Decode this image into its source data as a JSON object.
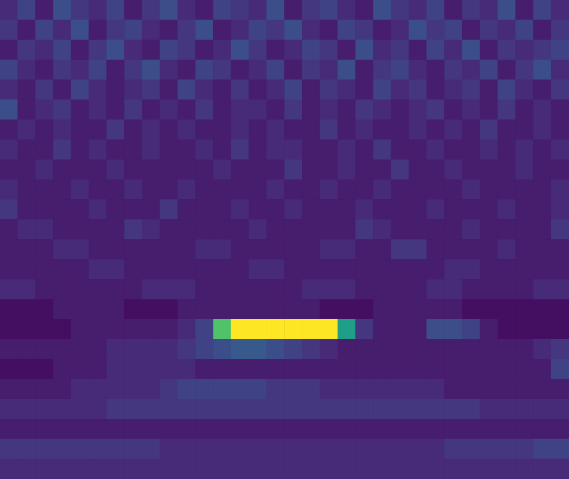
{
  "chart_data": {
    "type": "heatmap",
    "tick_labels": false,
    "value_range": [
      0,
      25
    ],
    "cells": [
      [
        3,
        5,
        2,
        6,
        4,
        3,
        5,
        2,
        4,
        6,
        3,
        2,
        5,
        4,
        3,
        6,
        2,
        4,
        5,
        3,
        2,
        6,
        4,
        3,
        5,
        2,
        4,
        3,
        6,
        2,
        5,
        3
      ],
      [
        4,
        2,
        5,
        3,
        6,
        2,
        4,
        5,
        3,
        2,
        4,
        6,
        2,
        3,
        5,
        4,
        6,
        3,
        2,
        5,
        4,
        2,
        3,
        6,
        4,
        5,
        2,
        4,
        3,
        5,
        2,
        4
      ],
      [
        2,
        4,
        3,
        5,
        2,
        4,
        6,
        3,
        2,
        5,
        4,
        2,
        3,
        6,
        4,
        2,
        3,
        5,
        4,
        2,
        6,
        3,
        4,
        2,
        5,
        3,
        6,
        2,
        4,
        3,
        4,
        5
      ],
      [
        5,
        3,
        2,
        4,
        3,
        5,
        2,
        4,
        6,
        3,
        2,
        5,
        4,
        2,
        3,
        5,
        2,
        4,
        3,
        6,
        2,
        4,
        5,
        3,
        2,
        4,
        3,
        5,
        2,
        4,
        6,
        3
      ],
      [
        3,
        2,
        4,
        2,
        5,
        3,
        2,
        3,
        4,
        2,
        5,
        3,
        2,
        4,
        2,
        3,
        5,
        2,
        4,
        3,
        2,
        5,
        3,
        4,
        2,
        3,
        4,
        2,
        5,
        3,
        2,
        4
      ],
      [
        6,
        2,
        3,
        4,
        2,
        3,
        2,
        4,
        2,
        3,
        2,
        4,
        2,
        3,
        3,
        2,
        4,
        2,
        3,
        2,
        4,
        3,
        2,
        3,
        4,
        2,
        3,
        2,
        4,
        2,
        3,
        2
      ],
      [
        2,
        3,
        2,
        3,
        2,
        2,
        4,
        2,
        3,
        2,
        3,
        2,
        2,
        3,
        2,
        3,
        2,
        2,
        4,
        2,
        3,
        2,
        2,
        3,
        2,
        3,
        2,
        4,
        2,
        2,
        3,
        2
      ],
      [
        3,
        2,
        2,
        4,
        2,
        3,
        2,
        2,
        3,
        2,
        2,
        3,
        2,
        4,
        2,
        3,
        3,
        2,
        2,
        3,
        2,
        4,
        2,
        2,
        3,
        2,
        2,
        3,
        2,
        3,
        2,
        3
      ],
      [
        2,
        2,
        3,
        2,
        2,
        2,
        3,
        2,
        2,
        2,
        2,
        2,
        3,
        2,
        2,
        2,
        4,
        2,
        2,
        3,
        2,
        2,
        4,
        2,
        2,
        3,
        2,
        2,
        2,
        3,
        2,
        2
      ],
      [
        3,
        2,
        2,
        2,
        3,
        2,
        2,
        3,
        2,
        2,
        3,
        2,
        2,
        2,
        2,
        3,
        2,
        2,
        3,
        2,
        2,
        3,
        2,
        2,
        2,
        2,
        3,
        2,
        2,
        2,
        2,
        3
      ],
      [
        4,
        2,
        2,
        2,
        2,
        3,
        2,
        2,
        2,
        4,
        2,
        2,
        2,
        3,
        2,
        2,
        3,
        2,
        2,
        2,
        3,
        2,
        2,
        2,
        3,
        2,
        2,
        2,
        3,
        2,
        2,
        3
      ],
      [
        2,
        3,
        3,
        2,
        2,
        2,
        2,
        4,
        3,
        2,
        2,
        2,
        2,
        2,
        3,
        2,
        2,
        2,
        2,
        2,
        4,
        3,
        2,
        2,
        2,
        2,
        3,
        2,
        2,
        2,
        2,
        4
      ],
      [
        2,
        2,
        2,
        3,
        3,
        2,
        2,
        2,
        2,
        2,
        2,
        3,
        3,
        2,
        2,
        2,
        2,
        2,
        3,
        3,
        2,
        2,
        4,
        4,
        2,
        2,
        2,
        2,
        3,
        2,
        2,
        2
      ],
      [
        2,
        2,
        2,
        2,
        2,
        3,
        3,
        2,
        2,
        2,
        2,
        2,
        2,
        2,
        3,
        3,
        2,
        2,
        2,
        2,
        2,
        2,
        2,
        2,
        2,
        3,
        3,
        2,
        2,
        2,
        2,
        2
      ],
      [
        3,
        3,
        2,
        2,
        2,
        2,
        2,
        2,
        3,
        3,
        3,
        2,
        2,
        2,
        2,
        2,
        2,
        3,
        3,
        3,
        2,
        2,
        2,
        2,
        3,
        3,
        2,
        2,
        2,
        2,
        3,
        3
      ],
      [
        1,
        1,
        1,
        2,
        2,
        2,
        2,
        1,
        1,
        1,
        2,
        2,
        2,
        2,
        2,
        2,
        2,
        2,
        1,
        1,
        1,
        2,
        2,
        2,
        2,
        2,
        1,
        1,
        1,
        1,
        1,
        1
      ],
      [
        1,
        1,
        1,
        1,
        2,
        2,
        2,
        2,
        2,
        2,
        3,
        5,
        18,
        25,
        25,
        25,
        25,
        25,
        25,
        14,
        4,
        2,
        2,
        2,
        6,
        6,
        5,
        2,
        1,
        1,
        1,
        1
      ],
      [
        2,
        2,
        2,
        2,
        2,
        2,
        3,
        3,
        3,
        3,
        4,
        5,
        6,
        7,
        7,
        6,
        5,
        4,
        3,
        2,
        2,
        2,
        2,
        2,
        2,
        2,
        2,
        2,
        2,
        2,
        3,
        4
      ],
      [
        1,
        1,
        1,
        2,
        2,
        2,
        3,
        3,
        3,
        3,
        3,
        2,
        2,
        2,
        2,
        2,
        2,
        2,
        2,
        2,
        2,
        2,
        2,
        2,
        2,
        2,
        2,
        2,
        2,
        2,
        2,
        5
      ],
      [
        2,
        2,
        2,
        2,
        3,
        3,
        3,
        3,
        3,
        4,
        5,
        5,
        5,
        5,
        5,
        4,
        4,
        4,
        3,
        3,
        3,
        3,
        3,
        3,
        3,
        2,
        2,
        2,
        2,
        2,
        2,
        2
      ],
      [
        3,
        3,
        3,
        3,
        3,
        3,
        4,
        4,
        4,
        4,
        4,
        4,
        4,
        4,
        4,
        4,
        4,
        4,
        4,
        4,
        4,
        4,
        4,
        4,
        4,
        4,
        4,
        3,
        3,
        3,
        3,
        3
      ],
      [
        2,
        2,
        2,
        2,
        2,
        2,
        2,
        2,
        2,
        2,
        2,
        2,
        2,
        2,
        2,
        2,
        2,
        2,
        2,
        2,
        2,
        2,
        2,
        2,
        2,
        2,
        2,
        2,
        2,
        2,
        2,
        2
      ],
      [
        4,
        4,
        4,
        4,
        4,
        4,
        4,
        4,
        4,
        3,
        3,
        3,
        3,
        3,
        3,
        3,
        3,
        3,
        3,
        3,
        3,
        3,
        3,
        3,
        3,
        4,
        4,
        4,
        4,
        4,
        5,
        5
      ],
      [
        3,
        3,
        3,
        3,
        3,
        3,
        3,
        3,
        3,
        3,
        3,
        3,
        3,
        3,
        3,
        3,
        3,
        3,
        3,
        3,
        3,
        3,
        3,
        3,
        3,
        3,
        3,
        3,
        3,
        3,
        3,
        3
      ]
    ]
  }
}
